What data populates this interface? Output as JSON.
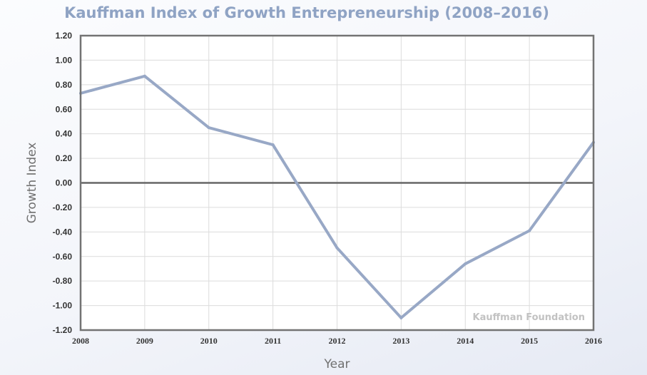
{
  "chart_data": {
    "type": "line",
    "title": "Kauffman Index of Growth Entrepreneurship (2008–2016)",
    "xlabel": "Year",
    "ylabel": "Growth Index",
    "categories": [
      "2008",
      "2009",
      "2010",
      "2011",
      "2012",
      "2013",
      "2014",
      "2015",
      "2016"
    ],
    "series": [
      {
        "values": [
          0.73,
          0.87,
          0.45,
          0.31,
          -0.53,
          -1.1,
          -0.66,
          -0.39,
          0.33
        ]
      }
    ],
    "ylim": [
      -1.2,
      1.2
    ],
    "yticks": [
      "1.20",
      "1.00",
      "0.80",
      "0.60",
      "0.40",
      "0.20",
      "0.00",
      "-0.20",
      "-0.40",
      "-0.60",
      "-0.80",
      "-1.00",
      "-1.20"
    ],
    "grid": true,
    "zero_line": true,
    "annotation": "Kauffman Foundation",
    "colors": {
      "line": "#98a8c6",
      "zero_line": "#666666",
      "grid": "#dcdcdc",
      "frame": "#737373"
    }
  }
}
